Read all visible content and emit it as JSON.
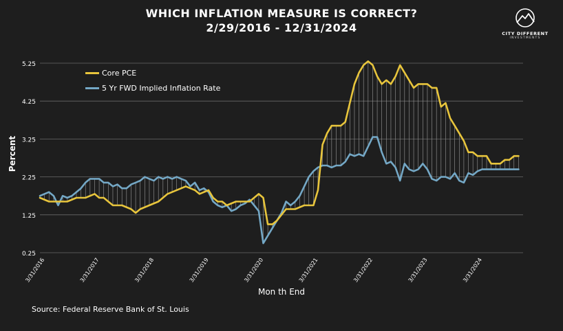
{
  "chart_data": {
    "type": "line",
    "title": "WHICH INFLATION MEASURE IS CORRECT?",
    "subtitle": "2/29/2016 - 12/31/2024",
    "xlabel": "Mon th End",
    "ylabel": "Percent",
    "ylim": [
      0.25,
      5.25
    ],
    "yticks": [
      "0.25",
      "1.25",
      "2.25",
      "3.25",
      "4.25",
      "5.25"
    ],
    "xlim": [
      "2016-02",
      "2024-12"
    ],
    "xticks": [
      {
        "label": "3/31/2016",
        "date": "2016-03"
      },
      {
        "label": "3/31/2017",
        "date": "2017-03"
      },
      {
        "label": "3/31/2018",
        "date": "2018-03"
      },
      {
        "label": "3/31/2019",
        "date": "2019-03"
      },
      {
        "label": "3/31/2020",
        "date": "2020-03"
      },
      {
        "label": "3/31/2021",
        "date": "2021-03"
      },
      {
        "label": "3/31/2022",
        "date": "2022-03"
      },
      {
        "label": "3/31/2023",
        "date": "2023-03"
      },
      {
        "label": "3/31/2024",
        "date": "2024-03"
      }
    ],
    "grid": "horizontal",
    "legend_position": "top-left",
    "series": [
      {
        "name": "Core PCE",
        "color": "#e8c53c",
        "points": [
          [
            "2016-02",
            1.7
          ],
          [
            "2016-04",
            1.6
          ],
          [
            "2016-06",
            1.6
          ],
          [
            "2016-08",
            1.6
          ],
          [
            "2016-10",
            1.7
          ],
          [
            "2016-12",
            1.7
          ],
          [
            "2017-02",
            1.8
          ],
          [
            "2017-03",
            1.7
          ],
          [
            "2017-04",
            1.7
          ],
          [
            "2017-05",
            1.6
          ],
          [
            "2017-06",
            1.5
          ],
          [
            "2017-08",
            1.5
          ],
          [
            "2017-10",
            1.4
          ],
          [
            "2017-11",
            1.3
          ],
          [
            "2017-12",
            1.4
          ],
          [
            "2018-02",
            1.5
          ],
          [
            "2018-04",
            1.6
          ],
          [
            "2018-06",
            1.8
          ],
          [
            "2018-08",
            1.9
          ],
          [
            "2018-10",
            2.0
          ],
          [
            "2018-12",
            1.9
          ],
          [
            "2019-01",
            1.8
          ],
          [
            "2019-03",
            1.9
          ],
          [
            "2019-04",
            1.7
          ],
          [
            "2019-05",
            1.6
          ],
          [
            "2019-06",
            1.6
          ],
          [
            "2019-07",
            1.5
          ],
          [
            "2019-09",
            1.6
          ],
          [
            "2019-11",
            1.6
          ],
          [
            "2019-12",
            1.6
          ],
          [
            "2020-02",
            1.8
          ],
          [
            "2020-03",
            1.7
          ],
          [
            "2020-04",
            1.0
          ],
          [
            "2020-05",
            1.0
          ],
          [
            "2020-06",
            1.1
          ],
          [
            "2020-08",
            1.4
          ],
          [
            "2020-10",
            1.4
          ],
          [
            "2020-12",
            1.5
          ],
          [
            "2021-02",
            1.5
          ],
          [
            "2021-03",
            1.9
          ],
          [
            "2021-04",
            3.1
          ],
          [
            "2021-05",
            3.4
          ],
          [
            "2021-06",
            3.6
          ],
          [
            "2021-08",
            3.6
          ],
          [
            "2021-09",
            3.7
          ],
          [
            "2021-10",
            4.2
          ],
          [
            "2021-11",
            4.7
          ],
          [
            "2021-12",
            5.0
          ],
          [
            "2022-01",
            5.2
          ],
          [
            "2022-02",
            5.3
          ],
          [
            "2022-03",
            5.2
          ],
          [
            "2022-04",
            4.9
          ],
          [
            "2022-05",
            4.7
          ],
          [
            "2022-06",
            4.8
          ],
          [
            "2022-07",
            4.7
          ],
          [
            "2022-08",
            4.9
          ],
          [
            "2022-09",
            5.2
          ],
          [
            "2022-10",
            5.0
          ],
          [
            "2022-11",
            4.8
          ],
          [
            "2022-12",
            4.6
          ],
          [
            "2023-01",
            4.7
          ],
          [
            "2023-02",
            4.7
          ],
          [
            "2023-03",
            4.7
          ],
          [
            "2023-04",
            4.6
          ],
          [
            "2023-05",
            4.6
          ],
          [
            "2023-06",
            4.1
          ],
          [
            "2023-07",
            4.2
          ],
          [
            "2023-08",
            3.8
          ],
          [
            "2023-09",
            3.6
          ],
          [
            "2023-10",
            3.4
          ],
          [
            "2023-11",
            3.2
          ],
          [
            "2023-12",
            2.9
          ],
          [
            "2024-01",
            2.9
          ],
          [
            "2024-02",
            2.8
          ],
          [
            "2024-03",
            2.8
          ],
          [
            "2024-04",
            2.8
          ],
          [
            "2024-05",
            2.6
          ],
          [
            "2024-06",
            2.6
          ],
          [
            "2024-07",
            2.6
          ],
          [
            "2024-08",
            2.7
          ],
          [
            "2024-09",
            2.7
          ],
          [
            "2024-10",
            2.8
          ],
          [
            "2024-11",
            2.8
          ]
        ]
      },
      {
        "name": "5 Yr FWD Implied Inflation Rate",
        "color": "#74a8c6",
        "points": [
          [
            "2016-02",
            1.75
          ],
          [
            "2016-03",
            1.8
          ],
          [
            "2016-04",
            1.85
          ],
          [
            "2016-05",
            1.75
          ],
          [
            "2016-06",
            1.5
          ],
          [
            "2016-07",
            1.75
          ],
          [
            "2016-08",
            1.7
          ],
          [
            "2016-09",
            1.75
          ],
          [
            "2016-11",
            1.95
          ],
          [
            "2016-12",
            2.1
          ],
          [
            "2017-01",
            2.2
          ],
          [
            "2017-03",
            2.2
          ],
          [
            "2017-04",
            2.1
          ],
          [
            "2017-05",
            2.1
          ],
          [
            "2017-06",
            2.0
          ],
          [
            "2017-07",
            2.05
          ],
          [
            "2017-08",
            1.95
          ],
          [
            "2017-09",
            1.95
          ],
          [
            "2017-10",
            2.05
          ],
          [
            "2017-11",
            2.1
          ],
          [
            "2017-12",
            2.15
          ],
          [
            "2018-01",
            2.25
          ],
          [
            "2018-02",
            2.2
          ],
          [
            "2018-03",
            2.15
          ],
          [
            "2018-04",
            2.25
          ],
          [
            "2018-05",
            2.2
          ],
          [
            "2018-06",
            2.25
          ],
          [
            "2018-07",
            2.2
          ],
          [
            "2018-08",
            2.25
          ],
          [
            "2018-09",
            2.2
          ],
          [
            "2018-10",
            2.15
          ],
          [
            "2018-11",
            2.0
          ],
          [
            "2018-12",
            2.1
          ],
          [
            "2019-01",
            1.9
          ],
          [
            "2019-02",
            1.95
          ],
          [
            "2019-03",
            1.85
          ],
          [
            "2019-04",
            1.6
          ],
          [
            "2019-05",
            1.5
          ],
          [
            "2019-06",
            1.45
          ],
          [
            "2019-07",
            1.5
          ],
          [
            "2019-08",
            1.35
          ],
          [
            "2019-09",
            1.4
          ],
          [
            "2019-10",
            1.5
          ],
          [
            "2019-11",
            1.55
          ],
          [
            "2019-12",
            1.65
          ],
          [
            "2020-01",
            1.5
          ],
          [
            "2020-02",
            1.35
          ],
          [
            "2020-03",
            0.5
          ],
          [
            "2020-04",
            0.7
          ],
          [
            "2020-05",
            0.9
          ],
          [
            "2020-06",
            1.1
          ],
          [
            "2020-07",
            1.3
          ],
          [
            "2020-08",
            1.6
          ],
          [
            "2020-09",
            1.5
          ],
          [
            "2020-10",
            1.6
          ],
          [
            "2020-11",
            1.75
          ],
          [
            "2020-12",
            2.0
          ],
          [
            "2021-01",
            2.25
          ],
          [
            "2021-02",
            2.4
          ],
          [
            "2021-03",
            2.5
          ],
          [
            "2021-04",
            2.55
          ],
          [
            "2021-05",
            2.55
          ],
          [
            "2021-06",
            2.5
          ],
          [
            "2021-07",
            2.55
          ],
          [
            "2021-08",
            2.55
          ],
          [
            "2021-09",
            2.65
          ],
          [
            "2021-10",
            2.85
          ],
          [
            "2021-11",
            2.8
          ],
          [
            "2021-12",
            2.85
          ],
          [
            "2022-01",
            2.8
          ],
          [
            "2022-02",
            3.05
          ],
          [
            "2022-03",
            3.3
          ],
          [
            "2022-04",
            3.3
          ],
          [
            "2022-05",
            2.9
          ],
          [
            "2022-06",
            2.6
          ],
          [
            "2022-07",
            2.65
          ],
          [
            "2022-08",
            2.5
          ],
          [
            "2022-09",
            2.15
          ],
          [
            "2022-10",
            2.6
          ],
          [
            "2022-11",
            2.45
          ],
          [
            "2022-12",
            2.4
          ],
          [
            "2023-01",
            2.45
          ],
          [
            "2023-02",
            2.6
          ],
          [
            "2023-03",
            2.45
          ],
          [
            "2023-04",
            2.2
          ],
          [
            "2023-05",
            2.15
          ],
          [
            "2023-06",
            2.25
          ],
          [
            "2023-07",
            2.25
          ],
          [
            "2023-08",
            2.2
          ],
          [
            "2023-09",
            2.35
          ],
          [
            "2023-10",
            2.15
          ],
          [
            "2023-11",
            2.1
          ],
          [
            "2023-12",
            2.35
          ],
          [
            "2024-01",
            2.3
          ],
          [
            "2024-02",
            2.4
          ],
          [
            "2024-03",
            2.45
          ],
          [
            "2024-05",
            2.45
          ],
          [
            "2024-08",
            2.45
          ],
          [
            "2024-11",
            2.45
          ]
        ]
      }
    ]
  },
  "legend": {
    "items": [
      {
        "label": "Core PCE",
        "color": "#e8c53c"
      },
      {
        "label": "5 Yr FWD Implied Inflation Rate",
        "color": "#74a8c6"
      }
    ]
  },
  "logo": {
    "name": "CITY DIFFERENT",
    "subtitle": "INVESTMENTS"
  },
  "source": "Source: Federal Reserve Bank of St. Louis",
  "colors": {
    "background": "#1e1e1e",
    "gridline": "#6a6a6a",
    "dropline": "#9a9a9a",
    "text": "#ffffff"
  }
}
